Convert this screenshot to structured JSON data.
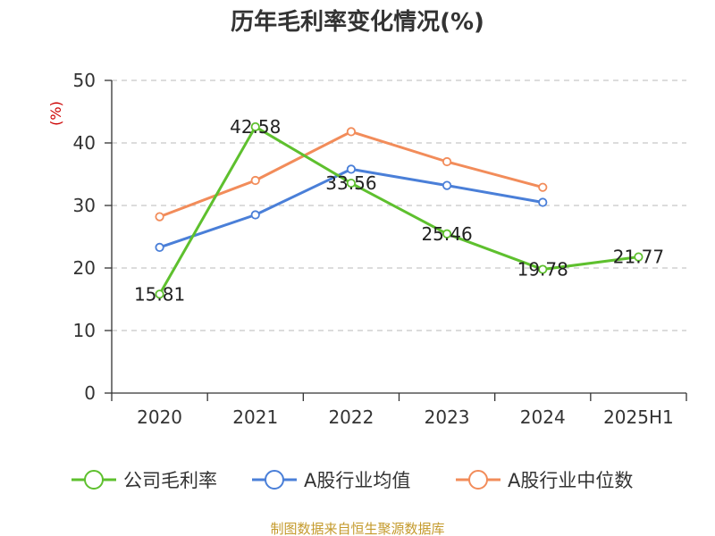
{
  "chart_data": {
    "type": "line",
    "title": "历年毛利率变化情况(%)",
    "ylabel": "(%)",
    "ylim": [
      0,
      50
    ],
    "yticks": [
      0,
      10,
      20,
      30,
      40,
      50
    ],
    "grid": true,
    "legend_position": "bottom",
    "categories": [
      "2020",
      "2021",
      "2022",
      "2023",
      "2024",
      "2025H1"
    ],
    "series": [
      {
        "name": "公司毛利率",
        "color": "#5ec02e",
        "values": [
          15.81,
          42.58,
          33.56,
          25.46,
          19.78,
          21.77
        ],
        "labels": [
          "15.81",
          "42.58",
          "33.56",
          "25.46",
          "19.78",
          "21.77"
        ]
      },
      {
        "name": "A股行业均值",
        "color": "#4a7fd8",
        "values": [
          23.3,
          28.5,
          35.8,
          33.2,
          30.5,
          null
        ]
      },
      {
        "name": "A股行业中位数",
        "color": "#f28c5a",
        "values": [
          28.2,
          34.0,
          41.8,
          37.0,
          32.9,
          null
        ]
      }
    ]
  },
  "source": "制图数据来自恒生聚源数据库"
}
